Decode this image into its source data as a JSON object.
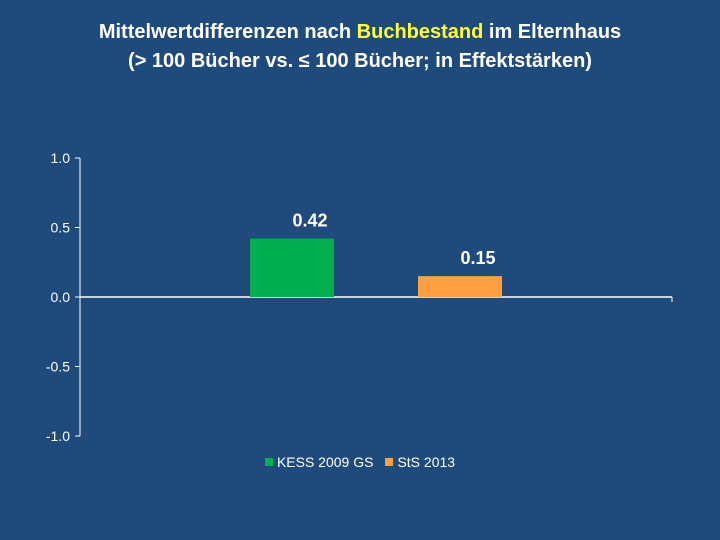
{
  "title": {
    "line1_before": "Mittelwertdifferenzen nach ",
    "line1_highlight": "Buchbestand",
    "line1_after": " im Elternhaus",
    "line2": "(> 100 Bücher vs. ≤ 100 Bücher; in Effektstärken)"
  },
  "colors": {
    "background": "#1f4a7c",
    "axis": "#ffffff",
    "highlight": "#ffff33"
  },
  "chart_data": {
    "type": "bar",
    "title": "Mittelwertdifferenzen nach Buchbestand im Elternhaus (> 100 Bücher vs. ≤ 100 Bücher; in Effektstärken)",
    "categories": [
      ""
    ],
    "series": [
      {
        "name": "KESS 2009 GS",
        "values": [
          0.42
        ],
        "color": "#00b050",
        "label": "0.42"
      },
      {
        "name": "StS 2013",
        "values": [
          0.15
        ],
        "color": "#ffa040",
        "label": "0.15"
      }
    ],
    "ylim": [
      -1.0,
      1.0
    ],
    "yticks": [
      1.0,
      0.5,
      0.0,
      -0.5,
      -1.0
    ],
    "ytick_labels": [
      "1.0",
      "0.5",
      "0.0",
      "-0.5",
      "-1.0"
    ],
    "xlabel": "",
    "ylabel": "",
    "grid": false,
    "legend": "bottom"
  }
}
